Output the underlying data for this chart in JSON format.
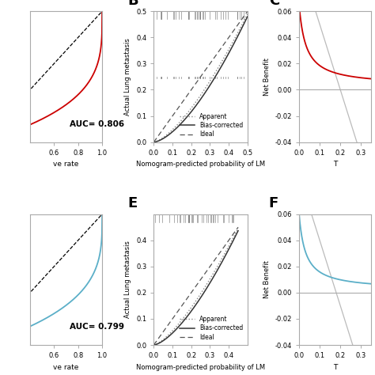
{
  "auc_top": "AUC= 0.806",
  "auc_bottom": "AUC= 0.799",
  "roc_color_top": "#cc0000",
  "roc_color_bottom": "#5bafc8",
  "calibration_xlabel": "Nomogram-predicted probability of LM",
  "calibration_ylabel": "Actual Lung metastasis",
  "net_benefit_ylabel": "Net Benefit",
  "legend_apparent": "Apparent",
  "legend_bias": "Bias-corrected",
  "legend_ideal": "Ideal",
  "panel_label_fontsize": 13,
  "background_color": "#ffffff",
  "font_color": "#000000",
  "gray_spine": "#aaaaaa"
}
